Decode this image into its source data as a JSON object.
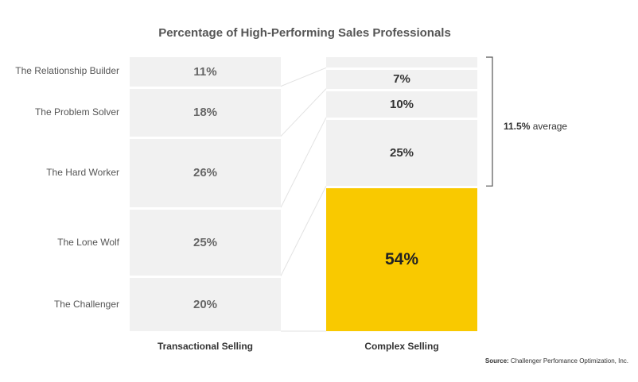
{
  "chart_data": {
    "type": "stacked-bar",
    "title": "Percentage of High-Performing Sales Professionals",
    "categories": [
      "The Relationship Builder",
      "The Problem Solver",
      "The Hard Worker",
      "The Lone Wolf",
      "The Challenger"
    ],
    "series": [
      {
        "name": "Transactional Selling",
        "values": [
          11,
          18,
          26,
          25,
          20
        ]
      },
      {
        "name": "Complex Selling",
        "values": [
          4,
          7,
          10,
          25,
          54
        ]
      }
    ],
    "display": {
      "left": [
        "11%",
        "18%",
        "26%",
        "25%",
        "20%"
      ],
      "right": [
        "",
        "7%",
        "10%",
        "25%",
        "54%"
      ]
    },
    "highlight_color": "#f9c900",
    "segment_color": "#f1f1f1",
    "average": {
      "value": "11.5%",
      "label": "average"
    },
    "source": {
      "prefix": "Source:",
      "text": "Challenger Perfomance Optimization, Inc."
    }
  }
}
